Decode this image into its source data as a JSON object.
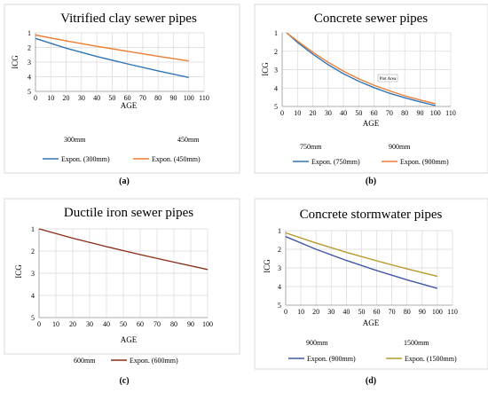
{
  "chart_data": [
    {
      "type": "line",
      "title": "Vitrified clay sewer pipes",
      "xlabel": "AGE",
      "ylabel": "ICG",
      "xlim": [
        0,
        110
      ],
      "ylim": [
        1,
        5
      ],
      "y_inverted": true,
      "x_ticks": [
        "0",
        "10",
        "20",
        "30",
        "40",
        "50",
        "60",
        "70",
        "80",
        "90",
        "100",
        "110"
      ],
      "y_ticks": [
        "1",
        "2",
        "3",
        "4",
        "5"
      ],
      "series_labels": [
        "300mm",
        "450mm"
      ],
      "series": [
        {
          "name": "Expon. (300mm)",
          "color": "#2e75b6",
          "x": [
            0,
            20,
            40,
            60,
            80,
            100
          ],
          "y": [
            1.38,
            2.05,
            2.62,
            3.12,
            3.6,
            4.05
          ]
        },
        {
          "name": "Expon. (450mm)",
          "color": "#ed7d31",
          "x": [
            0,
            20,
            40,
            60,
            80,
            100
          ],
          "y": [
            1.15,
            1.55,
            1.92,
            2.26,
            2.6,
            2.92
          ]
        }
      ],
      "caption": "(a)"
    },
    {
      "type": "line",
      "title": "Concrete sewer pipes",
      "xlabel": "AGE",
      "ylabel": "ICG",
      "xlim": [
        0,
        110
      ],
      "ylim": [
        1,
        5
      ],
      "y_inverted": true,
      "x_ticks": [
        "0",
        "10",
        "20",
        "30",
        "40",
        "50",
        "60",
        "70",
        "80",
        "90",
        "100",
        "110"
      ],
      "y_ticks": [
        "1",
        "2",
        "3",
        "4",
        "5"
      ],
      "annotation": "Plot Area",
      "series_labels": [
        "750mm",
        "900mm"
      ],
      "series": [
        {
          "name": "Expon. (750mm)",
          "color": "#2e75b6",
          "x": [
            3,
            10,
            20,
            30,
            40,
            50,
            60,
            70,
            80,
            90,
            100
          ],
          "y": [
            1.0,
            1.52,
            2.15,
            2.73,
            3.22,
            3.63,
            3.98,
            4.28,
            4.53,
            4.75,
            4.95
          ]
        },
        {
          "name": "Expon. (900mm)",
          "color": "#ed7d31",
          "x": [
            3,
            10,
            20,
            30,
            40,
            50,
            60,
            70,
            80,
            90,
            100
          ],
          "y": [
            1.0,
            1.45,
            2.05,
            2.6,
            3.08,
            3.5,
            3.85,
            4.15,
            4.42,
            4.65,
            4.85
          ]
        }
      ],
      "caption": "(b)"
    },
    {
      "type": "line",
      "title": "Ductile iron sewer pipes",
      "xlabel": "AGE",
      "ylabel": "ICG",
      "xlim": [
        0,
        100
      ],
      "ylim": [
        1,
        5
      ],
      "y_inverted": true,
      "x_ticks": [
        "0",
        "10",
        "20",
        "30",
        "40",
        "50",
        "60",
        "70",
        "80",
        "90",
        "100"
      ],
      "y_ticks": [
        "1",
        "2",
        "3",
        "4",
        "5"
      ],
      "series_labels": [
        "600mm"
      ],
      "series": [
        {
          "name": "Expon. (600mm)",
          "color": "#8b2e16",
          "x": [
            0,
            20,
            40,
            60,
            80,
            100
          ],
          "y": [
            1.0,
            1.42,
            1.8,
            2.16,
            2.5,
            2.83
          ]
        }
      ],
      "caption": "(c)"
    },
    {
      "type": "line",
      "title": "Concrete stormwater pipes",
      "xlabel": "AGE",
      "ylabel": "ICG",
      "xlim": [
        0,
        110
      ],
      "ylim": [
        1,
        5
      ],
      "y_inverted": true,
      "x_ticks": [
        "0",
        "10",
        "20",
        "30",
        "40",
        "50",
        "60",
        "70",
        "80",
        "90",
        "100",
        "110"
      ],
      "y_ticks": [
        "1",
        "2",
        "3",
        "4",
        "5"
      ],
      "series_labels": [
        "900mm",
        "1500mm"
      ],
      "series": [
        {
          "name": "Expon. (900mm)",
          "color": "#4158a6",
          "x": [
            0,
            20,
            40,
            60,
            80,
            100
          ],
          "y": [
            1.32,
            2.0,
            2.6,
            3.14,
            3.64,
            4.1
          ]
        },
        {
          "name": "Expon. (1500mm)",
          "color": "#b8982a",
          "x": [
            0,
            20,
            40,
            60,
            80,
            100
          ],
          "y": [
            1.12,
            1.66,
            2.16,
            2.62,
            3.05,
            3.45
          ]
        }
      ],
      "caption": "(d)"
    }
  ]
}
